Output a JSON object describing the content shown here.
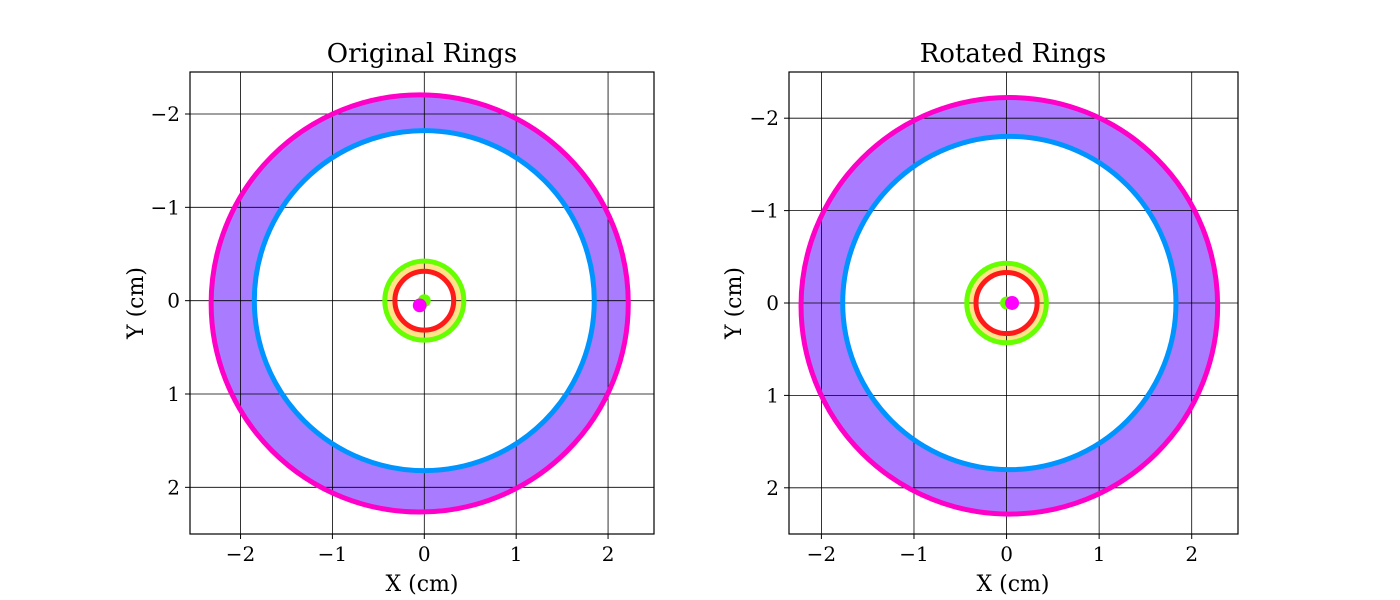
{
  "chart_data": [
    {
      "type": "ring-plot",
      "title": "Original Rings",
      "xlabel": "X (cm)",
      "ylabel": "Y (cm)",
      "xlim": [
        -2.55,
        2.5
      ],
      "ylim": [
        -2.45,
        2.5
      ],
      "y_inverted": true,
      "grid": true,
      "xticks": [
        -2,
        -1,
        0,
        1,
        2
      ],
      "yticks": [
        -2,
        -1,
        0,
        1,
        2
      ],
      "xtick_labels": [
        "−2",
        "−1",
        "0",
        "1",
        "2"
      ],
      "ytick_labels": [
        "−2",
        "−1",
        "0",
        "1",
        "2"
      ],
      "rings": [
        {
          "inner": {
            "cx": 0,
            "cy": 0.0,
            "r": 1.85,
            "color": "#0094ff"
          },
          "outer": {
            "cx": -0.05,
            "cy": 0.03,
            "r": 2.27,
            "color": "#ff00c8"
          },
          "fill": "#a97cff"
        },
        {
          "inner": {
            "cx": 0,
            "cy": 0.0,
            "r": 0.32,
            "color": "#ff1a1a"
          },
          "outer": {
            "cx": 0,
            "cy": 0.0,
            "r": 0.43,
            "color": "#66ff00"
          },
          "fill": "#ffe28a"
        }
      ],
      "dots": [
        {
          "cx": 0.0,
          "cy": 0.0,
          "r": 0.07,
          "color": "#66ff00"
        },
        {
          "cx": -0.05,
          "cy": 0.05,
          "r": 0.075,
          "color": "#ff00ff"
        }
      ]
    },
    {
      "type": "ring-plot",
      "title": "Rotated Rings",
      "xlabel": "X (cm)",
      "ylabel": "Y (cm)",
      "xlim": [
        -2.35,
        2.5
      ],
      "ylim": [
        -2.5,
        2.5
      ],
      "y_inverted": true,
      "grid": true,
      "xticks": [
        -2,
        -1,
        0,
        1,
        2
      ],
      "yticks": [
        -2,
        -1,
        0,
        1,
        2
      ],
      "xtick_labels": [
        "−2",
        "−1",
        "0",
        "1",
        "2"
      ],
      "ytick_labels": [
        "−2",
        "−1",
        "0",
        "1",
        "2"
      ],
      "rings": [
        {
          "inner": {
            "cx": 0.03,
            "cy": 0.0,
            "r": 1.8,
            "color": "#0094ff"
          },
          "outer": {
            "cx": 0.03,
            "cy": 0.03,
            "r": 2.25,
            "color": "#ff00c8"
          },
          "fill": "#a97cff"
        },
        {
          "inner": {
            "cx": 0.0,
            "cy": 0.0,
            "r": 0.33,
            "color": "#ff1a1a"
          },
          "outer": {
            "cx": 0.0,
            "cy": 0.0,
            "r": 0.43,
            "color": "#66ff00"
          },
          "fill": "#ffe28a"
        }
      ],
      "dots": [
        {
          "cx": 0.0,
          "cy": 0.0,
          "r": 0.07,
          "color": "#66ff00"
        },
        {
          "cx": 0.06,
          "cy": 0.0,
          "r": 0.075,
          "color": "#ff00ff"
        }
      ]
    }
  ]
}
